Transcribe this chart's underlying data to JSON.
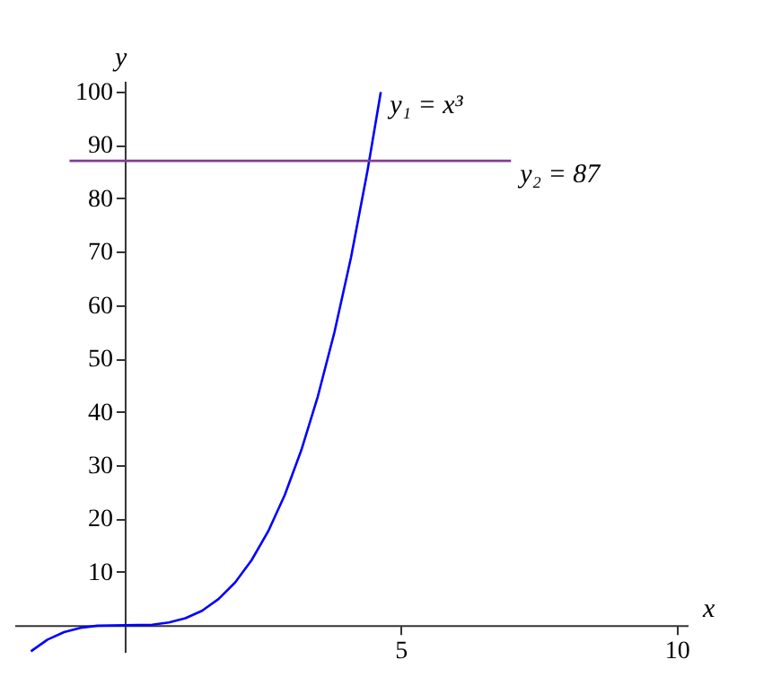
{
  "chart_data": {
    "type": "line",
    "xlabel": "x",
    "ylabel": "y",
    "xlim": [
      -2,
      10.2
    ],
    "ylim": [
      -5,
      102
    ],
    "xticks": [
      5,
      10
    ],
    "yticks": [
      10,
      20,
      30,
      40,
      50,
      60,
      70,
      80,
      90,
      100
    ],
    "marker": "none",
    "line_style": "solid",
    "series": [
      {
        "color": "#0000ff",
        "x": [
          -1.7,
          -1.4,
          -1.1,
          -0.8,
          -0.5,
          0,
          0.5,
          0.8,
          1.1,
          1.4,
          1.7,
          2,
          2.3,
          2.6,
          2.9,
          3.2,
          3.5,
          3.8,
          4.1,
          4.4,
          4.64
        ],
        "values": [
          -4.9,
          -2.7,
          -1.3,
          -0.5,
          -0.1,
          0,
          0.1,
          0.5,
          1.3,
          2.7,
          4.9,
          8,
          12.2,
          17.6,
          24.4,
          32.8,
          42.9,
          54.9,
          68.9,
          85.2,
          99.9
        ]
      },
      {
        "color": "#7f3f8f",
        "x": [
          -1.0,
          7.0
        ],
        "values": [
          87,
          87
        ]
      }
    ],
    "annotations": [
      {
        "text": "y₁ = x³",
        "x": 4.64,
        "y": 99.9
      },
      {
        "text": "y₂ = 87",
        "x": 7.0,
        "y": 87
      }
    ]
  }
}
